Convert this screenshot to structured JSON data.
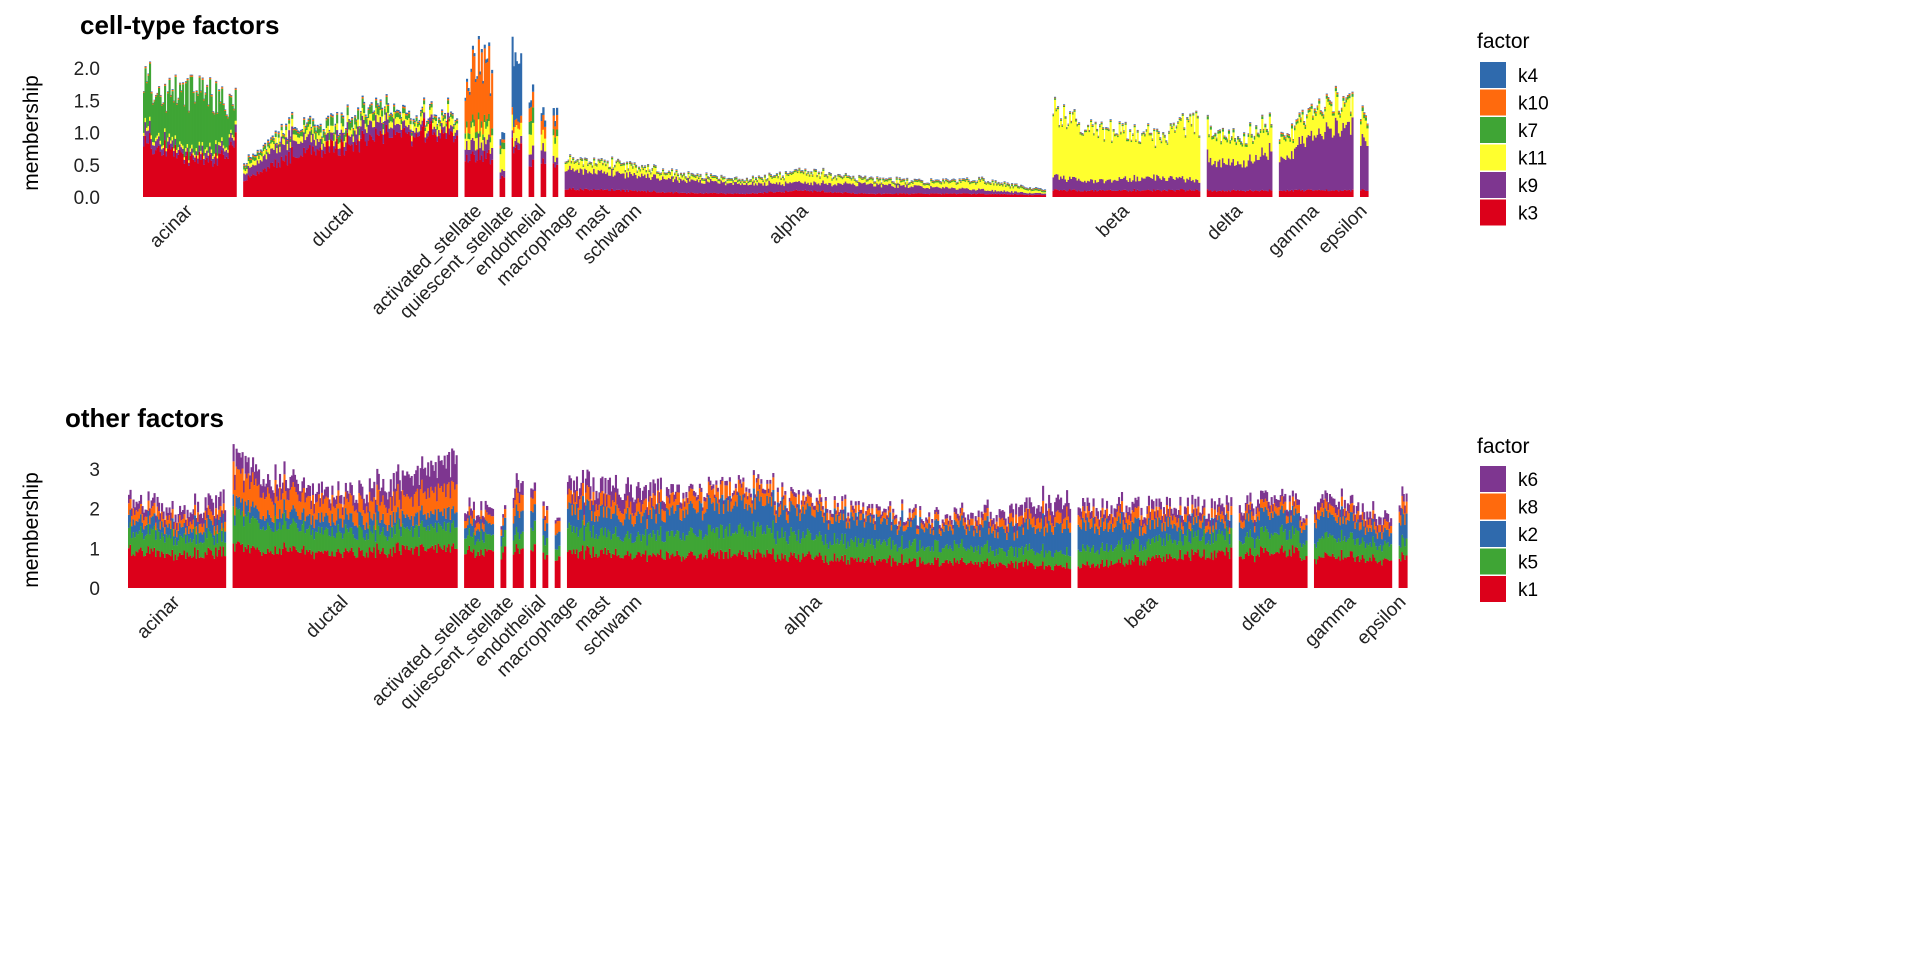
{
  "chart_data": [
    {
      "type": "bar",
      "subtype": "stacked structure plot",
      "title": "cell-type factors",
      "ylabel": "membership",
      "ylim": [
        0,
        2.2
      ],
      "yticks": [
        "0.0",
        "0.5",
        "1.0",
        "1.5",
        "2.0"
      ],
      "ytick_values": [
        0,
        0.5,
        1.0,
        1.5,
        2.0
      ],
      "legend_title": "factor",
      "legend_placement": "right",
      "factors": [
        "k4",
        "k10",
        "k7",
        "k11",
        "k9",
        "k3"
      ],
      "stack_order": [
        "k3",
        "k9",
        "k11",
        "k7",
        "k10",
        "k4"
      ],
      "colors": {
        "k4": "#2f6aad",
        "k10": "#ff6a0d",
        "k7": "#3fa535",
        "k11": "#ffff2e",
        "k9": "#7e3690",
        "k3": "#dc001a"
      },
      "groups": [
        {
          "name": "acinar",
          "n": 93,
          "profile": {
            "k3": [
              0.85,
              0.72,
              0.6,
              0.55,
              0.85
            ],
            "k9": [
              0.2,
              0.1,
              0.06,
              0.12,
              0.12
            ],
            "k11": [
              0.06,
              0.05,
              0.05,
              0.05
            ],
            "k7": [
              0.7,
              0.65,
              0.95,
              0.8,
              0.45
            ],
            "k10": [
              0.02
            ],
            "k4": [
              0.01
            ]
          }
        },
        {
          "name": "ductal",
          "n": 214,
          "profile": {
            "k3": [
              0.25,
              0.6,
              0.8,
              0.9,
              1.0,
              1.0
            ],
            "k9": [
              0.1,
              0.3,
              0.1,
              0.22,
              0.08,
              0.1
            ],
            "k11": [
              0.06,
              0.1,
              0.1,
              0.1,
              0.1,
              0.12
            ],
            "k7": [
              0.05,
              0.05,
              0.12,
              0.12,
              0.05,
              0.05
            ],
            "k10": [
              0.02
            ],
            "k4": [
              0.02
            ]
          }
        },
        {
          "name": "activated_stellate",
          "n": 28,
          "profile": {
            "k3": [
              0.6
            ],
            "k9": [
              0.2
            ],
            "k11": [
              0.2
            ],
            "k7": [
              0.1
            ],
            "k10": [
              0.6,
              1.0,
              0.8
            ],
            "k4": [
              0.05
            ]
          }
        },
        {
          "name": "quiescent_stellate",
          "n": 5,
          "profile": {
            "k3": [
              0.3
            ],
            "k9": [
              0.1
            ],
            "k11": [
              0.3
            ],
            "k7": [
              0.1
            ],
            "k10": [
              0.05
            ],
            "k4": [
              0.1
            ]
          }
        },
        {
          "name": "endothelial",
          "n": 10,
          "profile": {
            "k3": [
              0.75
            ],
            "k9": [
              0.1
            ],
            "k11": [
              0.2
            ],
            "k7": [
              0.0
            ],
            "k10": [
              0.1
            ],
            "k4": [
              0.9
            ]
          }
        },
        {
          "name": "macrophage",
          "n": 5,
          "profile": {
            "k3": [
              0.5
            ],
            "k9": [
              0.2
            ],
            "k11": [
              0.3
            ],
            "k7": [
              0.2
            ],
            "k10": [
              0.2
            ],
            "k4": [
              0.1
            ]
          }
        },
        {
          "name": "mast",
          "n": 5,
          "profile": {
            "k3": [
              0.5
            ],
            "k9": [
              0.2
            ],
            "k11": [
              0.2
            ],
            "k7": [
              0.0
            ],
            "k10": [
              0.2
            ],
            "k4": [
              0.1
            ]
          }
        },
        {
          "name": "schwann",
          "n": 5,
          "profile": {
            "k3": [
              0.5
            ],
            "k9": [
              0.1
            ],
            "k11": [
              0.3
            ],
            "k7": [
              0.1
            ],
            "k10": [
              0.2
            ],
            "k4": [
              0.1
            ]
          }
        },
        {
          "name": "alpha",
          "n": 480,
          "profile": {
            "k3": [
              0.12,
              0.1,
              0.06,
              0.05,
              0.1,
              0.05,
              0.05,
              0.05,
              0.03
            ],
            "k9": [
              0.3,
              0.25,
              0.2,
              0.15,
              0.12,
              0.15,
              0.1,
              0.06,
              0.02
            ],
            "k11": [
              0.12,
              0.12,
              0.05,
              0.03,
              0.15,
              0.05,
              0.05,
              0.12,
              0.02
            ],
            "k7": [
              0.02
            ],
            "k10": [
              0.01
            ],
            "k4": [
              0.01
            ]
          }
        },
        {
          "name": "beta",
          "n": 147,
          "profile": {
            "k3": [
              0.1
            ],
            "k9": [
              0.2,
              0.15,
              0.2,
              0.15
            ],
            "k11": [
              0.95,
              0.8,
              0.7,
              0.6,
              0.9
            ],
            "k7": [
              0.02
            ],
            "k10": [
              0.01
            ],
            "k4": [
              0.01
            ]
          }
        },
        {
          "name": "delta",
          "n": 65,
          "profile": {
            "k3": [
              0.1
            ],
            "k9": [
              0.5,
              0.4,
              0.6
            ],
            "k11": [
              0.45,
              0.35,
              0.4
            ],
            "k7": [
              0.04
            ],
            "k10": [
              0.01
            ],
            "k4": [
              0.01
            ]
          }
        },
        {
          "name": "gamma",
          "n": 74,
          "profile": {
            "k3": [
              0.1
            ],
            "k9": [
              0.45,
              0.75,
              0.9,
              1.0
            ],
            "k11": [
              0.3,
              0.3,
              0.35,
              0.3
            ],
            "k7": [
              0.04
            ],
            "k10": [
              0.02
            ],
            "k4": [
              0.01
            ]
          }
        },
        {
          "name": "epsilon",
          "n": 8,
          "profile": {
            "k3": [
              0.1
            ],
            "k9": [
              0.7
            ],
            "k11": [
              0.3
            ],
            "k7": [
              0.05
            ],
            "k10": [
              0.02
            ],
            "k4": [
              0.01
            ]
          }
        }
      ]
    },
    {
      "type": "bar",
      "subtype": "stacked structure plot",
      "title": "other factors",
      "ylabel": "membership",
      "ylim": [
        0,
        3.5
      ],
      "yticks": [
        "0",
        "1",
        "2",
        "3"
      ],
      "ytick_values": [
        0,
        1,
        2,
        3
      ],
      "legend_title": "factor",
      "legend_placement": "right",
      "factors": [
        "k6",
        "k8",
        "k2",
        "k5",
        "k1"
      ],
      "stack_order": [
        "k1",
        "k5",
        "k2",
        "k8",
        "k6"
      ],
      "colors": {
        "k6": "#7e3690",
        "k8": "#ff6a0d",
        "k2": "#2f6aad",
        "k5": "#3fa535",
        "k1": "#dc001a"
      },
      "groups": [
        {
          "name": "acinar",
          "n": 93,
          "profile": {
            "k1": [
              0.9,
              0.85,
              0.9
            ],
            "k5": [
              0.5,
              0.45,
              0.4
            ],
            "k2": [
              0.3,
              0.25,
              0.3
            ],
            "k8": [
              0.25,
              0.2,
              0.25
            ],
            "k6": [
              0.2,
              0.2,
              0.35
            ]
          }
        },
        {
          "name": "ductal",
          "n": 214,
          "profile": {
            "k1": [
              1.0,
              0.95,
              0.85,
              1.0,
              1.0
            ],
            "k5": [
              0.8,
              0.6,
              0.5,
              0.5,
              0.55
            ],
            "k2": [
              0.3,
              0.3,
              0.35,
              0.3,
              0.35
            ],
            "k8": [
              0.7,
              0.5,
              0.4,
              0.5,
              0.6
            ],
            "k6": [
              0.4,
              0.3,
              0.2,
              0.5,
              0.7
            ]
          }
        },
        {
          "name": "activated_stellate",
          "n": 28,
          "profile": {
            "k1": [
              0.95
            ],
            "k5": [
              0.4
            ],
            "k2": [
              0.3
            ],
            "k8": [
              0.2
            ],
            "k6": [
              0.2
            ]
          }
        },
        {
          "name": "quiescent_stellate",
          "n": 5,
          "profile": {
            "k1": [
              0.9
            ],
            "k5": [
              0.4
            ],
            "k2": [
              0.3
            ],
            "k8": [
              0.2
            ],
            "k6": [
              0.1
            ]
          }
        },
        {
          "name": "endothelial",
          "n": 10,
          "profile": {
            "k1": [
              0.9
            ],
            "k5": [
              0.4
            ],
            "k2": [
              0.5
            ],
            "k8": [
              0.4
            ],
            "k6": [
              0.3
            ]
          }
        },
        {
          "name": "macrophage",
          "n": 5,
          "profile": {
            "k1": [
              0.9
            ],
            "k5": [
              0.5
            ],
            "k2": [
              0.4
            ],
            "k8": [
              0.3
            ],
            "k6": [
              0.2
            ]
          }
        },
        {
          "name": "mast",
          "n": 5,
          "profile": {
            "k1": [
              0.8
            ],
            "k5": [
              0.4
            ],
            "k2": [
              0.4
            ],
            "k8": [
              0.3
            ],
            "k6": [
              0.1
            ]
          }
        },
        {
          "name": "schwann",
          "n": 5,
          "profile": {
            "k1": [
              0.8
            ],
            "k5": [
              0.3
            ],
            "k2": [
              0.4
            ],
            "k8": [
              0.3
            ],
            "k6": [
              0.1
            ]
          }
        },
        {
          "name": "alpha",
          "n": 480,
          "profile": {
            "k1": [
              0.9,
              0.85,
              0.8,
              0.85,
              0.75,
              0.7,
              0.65,
              0.6,
              0.55
            ],
            "k5": [
              0.6,
              0.45,
              0.55,
              0.6,
              0.5,
              0.45,
              0.4,
              0.35,
              0.35
            ],
            "k2": [
              0.5,
              0.5,
              0.6,
              0.7,
              0.6,
              0.55,
              0.5,
              0.5,
              0.7
            ],
            "k8": [
              0.3,
              0.3,
              0.3,
              0.3,
              0.2,
              0.15,
              0.15,
              0.2,
              0.3
            ],
            "k6": [
              0.3,
              0.4,
              0.1,
              0.1,
              0.1,
              0.1,
              0.1,
              0.2,
              0.4
            ]
          }
        },
        {
          "name": "beta",
          "n": 147,
          "profile": {
            "k1": [
              0.55,
              0.65,
              0.75,
              0.85,
              0.9
            ],
            "k5": [
              0.4,
              0.4,
              0.45,
              0.45,
              0.45
            ],
            "k2": [
              0.6,
              0.55,
              0.4,
              0.35,
              0.3
            ],
            "k8": [
              0.25,
              0.25,
              0.25,
              0.2,
              0.2
            ],
            "k6": [
              0.2,
              0.2,
              0.2,
              0.2,
              0.2
            ]
          }
        },
        {
          "name": "delta",
          "n": 65,
          "profile": {
            "k1": [
              0.8,
              0.9,
              0.85
            ],
            "k5": [
              0.4,
              0.5,
              0.4
            ],
            "k2": [
              0.4,
              0.5,
              0.4
            ],
            "k8": [
              0.2,
              0.2,
              0.2
            ],
            "k6": [
              0.2,
              0.2,
              0.1
            ]
          }
        },
        {
          "name": "gamma",
          "n": 74,
          "profile": {
            "k1": [
              0.7,
              0.8,
              0.75,
              0.7
            ],
            "k5": [
              0.4,
              0.5,
              0.4,
              0.4
            ],
            "k2": [
              0.5,
              0.5,
              0.4,
              0.3
            ],
            "k8": [
              0.2,
              0.2,
              0.2,
              0.2
            ],
            "k6": [
              0.2,
              0.2,
              0.2,
              0.2
            ]
          }
        },
        {
          "name": "epsilon",
          "n": 8,
          "profile": {
            "k1": [
              0.8
            ],
            "k5": [
              0.4
            ],
            "k2": [
              0.6
            ],
            "k8": [
              0.3
            ],
            "k6": [
              0.2
            ]
          }
        }
      ]
    }
  ]
}
